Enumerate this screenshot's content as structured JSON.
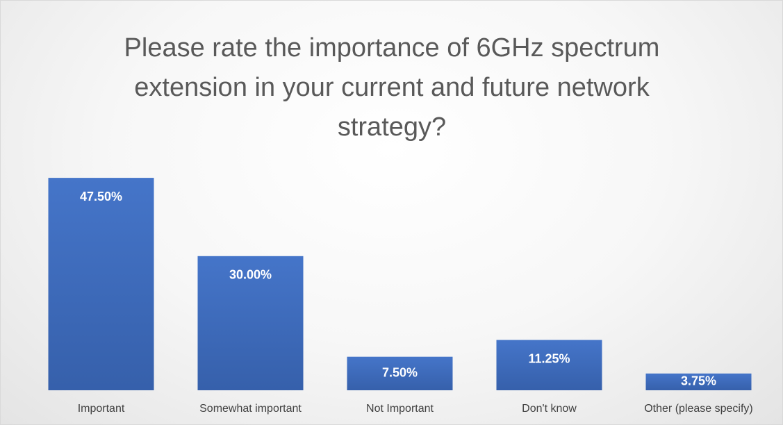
{
  "chart_data": {
    "type": "bar",
    "title": "Please rate the importance of 6GHz spectrum extension in your current and future network strategy?",
    "categories": [
      "Important",
      "Somewhat important",
      "Not Important",
      "Don't know",
      "Other (please specify)"
    ],
    "values": [
      47.5,
      30,
      7.5,
      11.25,
      3.75
    ],
    "value_labels": [
      "47.50%",
      "30.00%",
      "7.50%",
      "11.25%",
      "3.75%"
    ],
    "color": "#4472c4",
    "ylim": [
      0,
      50
    ]
  }
}
